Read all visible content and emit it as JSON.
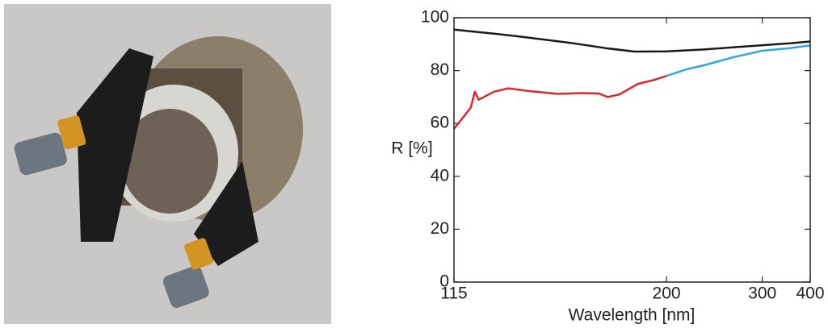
{
  "chart_data": {
    "type": "line",
    "xlabel": "Wavelength [nm]",
    "ylabel": "R [%]",
    "xscale": "reciprocal",
    "xlim": [
      115,
      400
    ],
    "xticks": [
      115,
      200,
      300,
      400
    ],
    "ylim": [
      0,
      100
    ],
    "yticks": [
      0,
      20,
      40,
      60,
      80,
      100
    ],
    "series": [
      {
        "color": "#1a1a1a",
        "x": [
          115,
          125,
          135,
          150,
          165,
          180,
          200,
          230,
          260,
          300,
          350,
          400
        ],
        "values": [
          95.5,
          94,
          92.5,
          90.5,
          88.5,
          87.2,
          87.3,
          88,
          88.8,
          89.6,
          90.3,
          91
        ]
      },
      {
        "color": "#d8282e",
        "x": [
          115,
          117,
          119,
          120,
          121,
          125,
          129,
          135,
          145,
          155,
          162,
          166,
          172,
          182,
          192,
          200
        ],
        "values": [
          58,
          62,
          66,
          72,
          69,
          72,
          73.3,
          72.3,
          71.2,
          71.5,
          71.3,
          70,
          71,
          75,
          76.5,
          78
        ]
      },
      {
        "color": "#2fa7d8",
        "x": [
          200,
          215,
          230,
          260,
          300,
          350,
          400
        ],
        "values": [
          78,
          80.5,
          82,
          85,
          87.5,
          88.5,
          89.5
        ]
      }
    ]
  }
}
